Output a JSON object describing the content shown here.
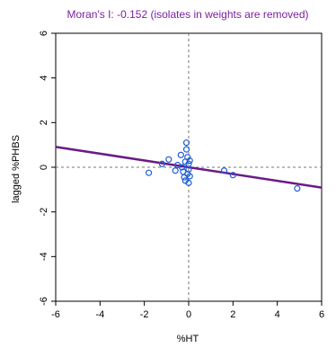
{
  "chart_data": {
    "type": "scatter",
    "title": "Moran's I: -0.152 (isolates in weights are removed)",
    "xlabel": "%HT",
    "ylabel": "lagged %PHBS",
    "xlim": [
      -6,
      6
    ],
    "ylim": [
      -6,
      6
    ],
    "xticks": [
      "-6",
      "-4",
      "-2",
      "0",
      "2",
      "4",
      "6"
    ],
    "yticks": [
      "-6",
      "-4",
      "-2",
      "0",
      "2",
      "4",
      "6"
    ],
    "grid": false,
    "reference_lines": {
      "x": 0,
      "y": 0,
      "style": "dashed"
    },
    "regression_line": {
      "slope": -0.152,
      "intercept": 0.0
    },
    "colors": {
      "title": "#7b1fa2",
      "points": "#1f5fd6",
      "regression": "#6a1b86",
      "reference": "#777777"
    },
    "points": [
      [
        -1.8,
        -0.25
      ],
      [
        -1.2,
        0.15
      ],
      [
        -0.9,
        0.35
      ],
      [
        -0.6,
        -0.15
      ],
      [
        -0.5,
        0.1
      ],
      [
        -0.35,
        0.55
      ],
      [
        -0.3,
        0.0
      ],
      [
        -0.25,
        -0.2
      ],
      [
        -0.2,
        -0.45
      ],
      [
        -0.15,
        0.25
      ],
      [
        -0.15,
        -0.6
      ],
      [
        -0.1,
        1.1
      ],
      [
        -0.1,
        0.8
      ],
      [
        -0.05,
        -0.3
      ],
      [
        -0.05,
        0.45
      ],
      [
        0.0,
        -0.7
      ],
      [
        0.0,
        0.15
      ],
      [
        0.0,
        -0.1
      ],
      [
        0.05,
        0.3
      ],
      [
        0.05,
        -0.4
      ],
      [
        1.6,
        -0.15
      ],
      [
        2.0,
        -0.35
      ],
      [
        4.9,
        -0.95
      ]
    ]
  }
}
